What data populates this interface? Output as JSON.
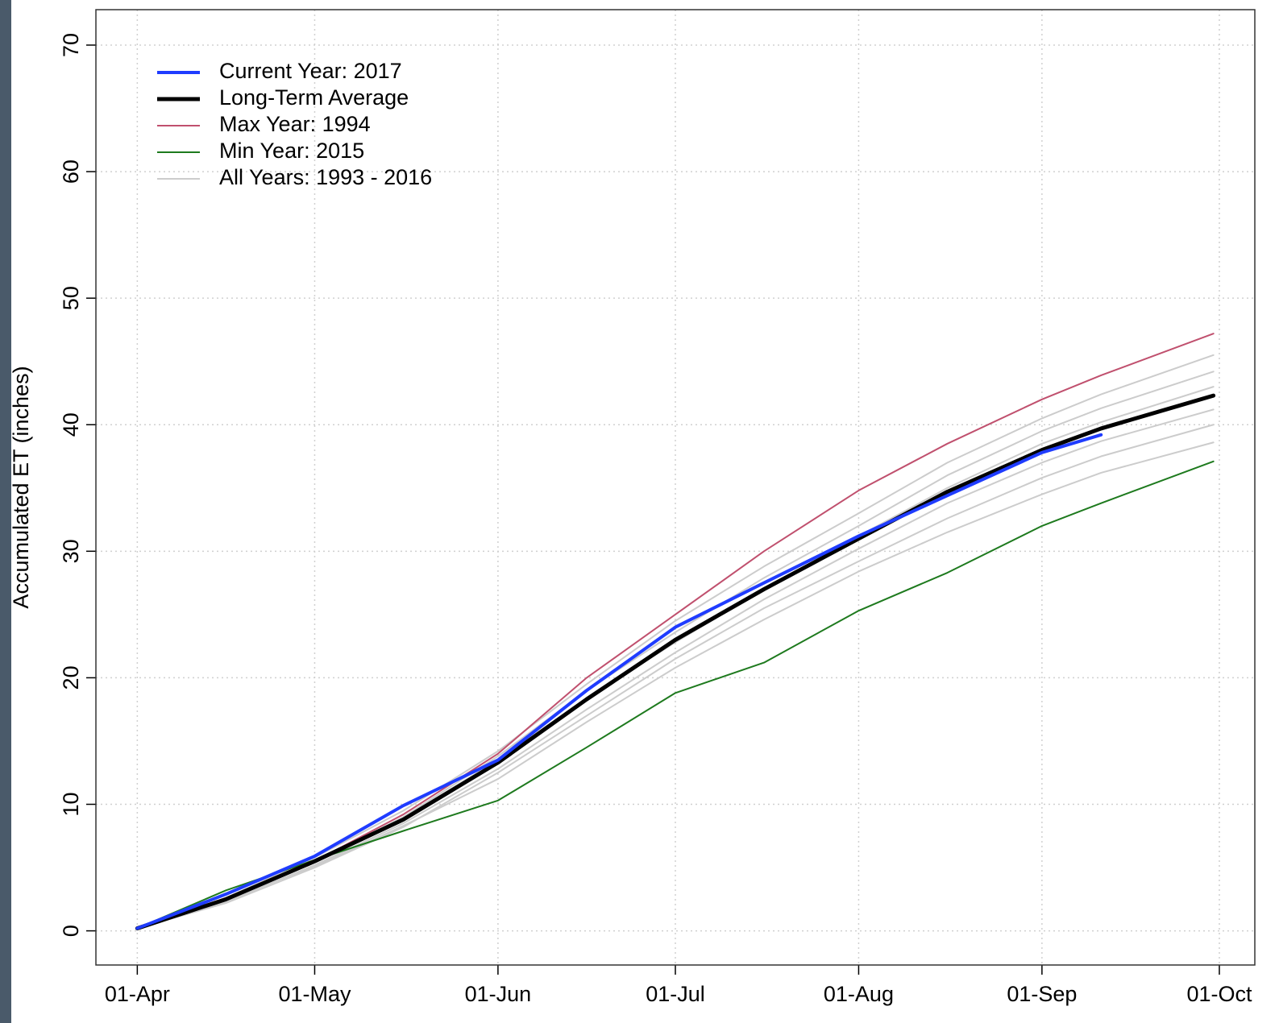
{
  "chart_data": {
    "type": "line",
    "y_label": "Accumulated ET (inches)",
    "x": [
      0,
      15,
      30,
      45,
      61,
      76,
      91,
      106,
      122,
      137,
      153,
      163,
      182
    ],
    "xlim": [
      -7,
      189
    ],
    "xticks": [
      {
        "value": 0,
        "label": "01-Apr"
      },
      {
        "value": 30,
        "label": "01-May"
      },
      {
        "value": 61,
        "label": "01-Jun"
      },
      {
        "value": 91,
        "label": "01-Jul"
      },
      {
        "value": 122,
        "label": "01-Aug"
      },
      {
        "value": 153,
        "label": "01-Sep"
      },
      {
        "value": 183,
        "label": "01-Oct"
      }
    ],
    "ylim": [
      -2.7,
      72.8
    ],
    "yticks": [
      0,
      10,
      20,
      30,
      40,
      50,
      60,
      70
    ],
    "grid": true,
    "legend": "top-left",
    "series": [
      {
        "name": "Current Year: 2017",
        "color": "#1f3cff",
        "width": 4,
        "values": [
          0.2,
          2.9,
          5.9,
          9.9,
          13.5,
          19.0,
          24.0,
          27.5,
          31.2,
          34.4,
          37.8,
          39.2,
          null
        ]
      },
      {
        "name": "Long-Term Average",
        "color": "#000000",
        "width": 5,
        "values": [
          0.2,
          2.5,
          5.5,
          8.8,
          13.3,
          18.3,
          23.0,
          27.0,
          31.0,
          34.7,
          38.0,
          39.7,
          42.3
        ]
      },
      {
        "name": "Max Year: 1994",
        "color": "#c0506e",
        "width": 2,
        "values": [
          0.2,
          2.6,
          5.5,
          9.2,
          14.0,
          20.0,
          25.0,
          30.0,
          34.8,
          38.5,
          42.0,
          43.9,
          47.2
        ]
      },
      {
        "name": "Min Year: 2015",
        "color": "#1e7a1e",
        "width": 2,
        "values": [
          0.2,
          3.2,
          5.6,
          7.9,
          10.3,
          14.5,
          18.8,
          21.2,
          25.3,
          28.3,
          32.0,
          33.8,
          37.1
        ]
      },
      {
        "name": "All Years: 1993 - 2016",
        "color": "#cccccc",
        "width": 2,
        "lines": [
          [
            0.2,
            2.6,
            5.8,
            9.5,
            14.2,
            19.5,
            24.5,
            28.8,
            33.0,
            37.0,
            40.5,
            42.4,
            45.5
          ],
          [
            0.2,
            2.4,
            5.4,
            9.0,
            13.8,
            19.0,
            23.6,
            27.9,
            32.0,
            36.0,
            39.5,
            41.3,
            44.2
          ],
          [
            0.2,
            2.5,
            5.6,
            8.9,
            13.5,
            18.4,
            22.8,
            27.0,
            31.2,
            35.0,
            38.5,
            40.2,
            43.0
          ],
          [
            0.2,
            2.3,
            5.2,
            8.5,
            12.8,
            17.5,
            22.0,
            26.2,
            30.2,
            33.8,
            37.0,
            38.7,
            41.2
          ],
          [
            0.2,
            2.2,
            5.0,
            8.2,
            12.5,
            17.0,
            21.5,
            25.5,
            29.2,
            32.6,
            35.8,
            37.5,
            40.0
          ],
          [
            0.2,
            2.4,
            5.1,
            8.3,
            12.0,
            16.5,
            20.8,
            24.6,
            28.4,
            31.5,
            34.5,
            36.2,
            38.6
          ]
        ]
      }
    ]
  }
}
